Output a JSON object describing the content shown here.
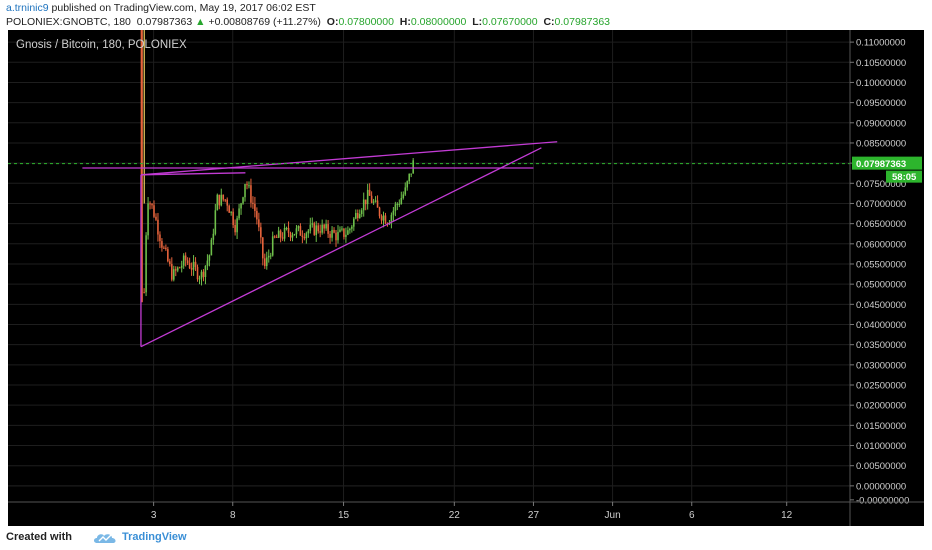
{
  "header": {
    "author": "a.trninic9",
    "published": "published on TradingView.com, May 19, 2017 06:02 EST",
    "symbol": "POLONIEX:GNOBTC, 180",
    "last_price": "0.07987363",
    "change_arrow": "▲",
    "change": "+0.00808769 (+11.27%)",
    "open_label": "O:",
    "open": "0.07800000",
    "high_label": "H:",
    "high": "0.08000000",
    "low_label": "L:",
    "low": "0.07670000",
    "close_label": "C:",
    "close": "0.07987363"
  },
  "chart_data": {
    "type": "candlestick",
    "title": "Gnosis / Bitcoin, 180, POLONIEX",
    "interval": "180",
    "ylim": [
      -0.004,
      0.113
    ],
    "y_ticks": [
      "0.11000000",
      "0.10500000",
      "0.10000000",
      "0.09500000",
      "0.09000000",
      "0.08500000",
      "0.08000000",
      "0.07500000",
      "0.07000000",
      "0.06500000",
      "0.06000000",
      "0.05500000",
      "0.05000000",
      "0.04500000",
      "0.04000000",
      "0.03500000",
      "0.03000000",
      "0.02500000",
      "0.02000000",
      "0.01500000",
      "0.01000000",
      "0.00500000",
      "0.00000000",
      "-0.00000000"
    ],
    "x_ticks": [
      {
        "label": "3",
        "day": 3
      },
      {
        "label": "8",
        "day": 8
      },
      {
        "label": "15",
        "day": 15
      },
      {
        "label": "22",
        "day": 22
      },
      {
        "label": "27",
        "day": 27
      },
      {
        "label": "Jun",
        "day": 32
      },
      {
        "label": "6",
        "day": 37
      },
      {
        "label": "12",
        "day": 43
      }
    ],
    "x_range_days": [
      -6.2,
      47
    ],
    "grid": true,
    "last_price_label": "0.07987363",
    "countdown_label": "58:05",
    "price_line": 0.07987363,
    "anchors": [
      {
        "day": 2.4,
        "price": 0.048
      },
      {
        "day": 2.6,
        "price": 0.072
      },
      {
        "day": 3.0,
        "price": 0.068
      },
      {
        "day": 3.6,
        "price": 0.059
      },
      {
        "day": 4.2,
        "price": 0.052
      },
      {
        "day": 5.0,
        "price": 0.056
      },
      {
        "day": 6.0,
        "price": 0.052
      },
      {
        "day": 6.6,
        "price": 0.058
      },
      {
        "day": 7.0,
        "price": 0.071
      },
      {
        "day": 7.6,
        "price": 0.071
      },
      {
        "day": 8.2,
        "price": 0.064
      },
      {
        "day": 8.8,
        "price": 0.076
      },
      {
        "day": 9.5,
        "price": 0.067
      },
      {
        "day": 10.0,
        "price": 0.054
      },
      {
        "day": 10.6,
        "price": 0.061
      },
      {
        "day": 11.5,
        "price": 0.063
      },
      {
        "day": 12.5,
        "price": 0.063
      },
      {
        "day": 13.5,
        "price": 0.064
      },
      {
        "day": 14.6,
        "price": 0.062
      },
      {
        "day": 15.3,
        "price": 0.063
      },
      {
        "day": 16.0,
        "price": 0.069
      },
      {
        "day": 16.6,
        "price": 0.072
      },
      {
        "day": 17.2,
        "price": 0.068
      },
      {
        "day": 17.8,
        "price": 0.066
      },
      {
        "day": 18.4,
        "price": 0.07
      },
      {
        "day": 18.9,
        "price": 0.073
      },
      {
        "day": 19.4,
        "price": 0.0799
      }
    ],
    "spike": {
      "day": 2.25,
      "low": 0.0455,
      "high": 0.113
    },
    "trendlines": [
      {
        "from": {
          "day": 2.2,
          "price": 0.0771
        },
        "to": {
          "day": 28.5,
          "price": 0.0853
        }
      },
      {
        "from": {
          "day": 2.2,
          "price": 0.0345
        },
        "to": {
          "day": 27.5,
          "price": 0.0838
        }
      },
      {
        "from": {
          "day": 2.2,
          "price": 0.0771
        },
        "to": {
          "day": 2.2,
          "price": 0.0345
        }
      },
      {
        "from": {
          "day": 2.2,
          "price": 0.0771
        },
        "to": {
          "day": 8.8,
          "price": 0.0776
        }
      },
      {
        "from": {
          "day": -1.5,
          "price": 0.0788
        },
        "to": {
          "day": 27.0,
          "price": 0.0788
        }
      }
    ]
  },
  "footer": {
    "created_with": "Created with",
    "brand": "TradingView",
    "logo_icon": "tradingview-cloud-icon"
  },
  "colors": {
    "up": "#6fc04b",
    "down": "#e8643c",
    "trendline": "#c23bd4",
    "price_line": "#2db52d",
    "axis_text": "#cfcfcf",
    "grid": "#1e1e1e"
  }
}
